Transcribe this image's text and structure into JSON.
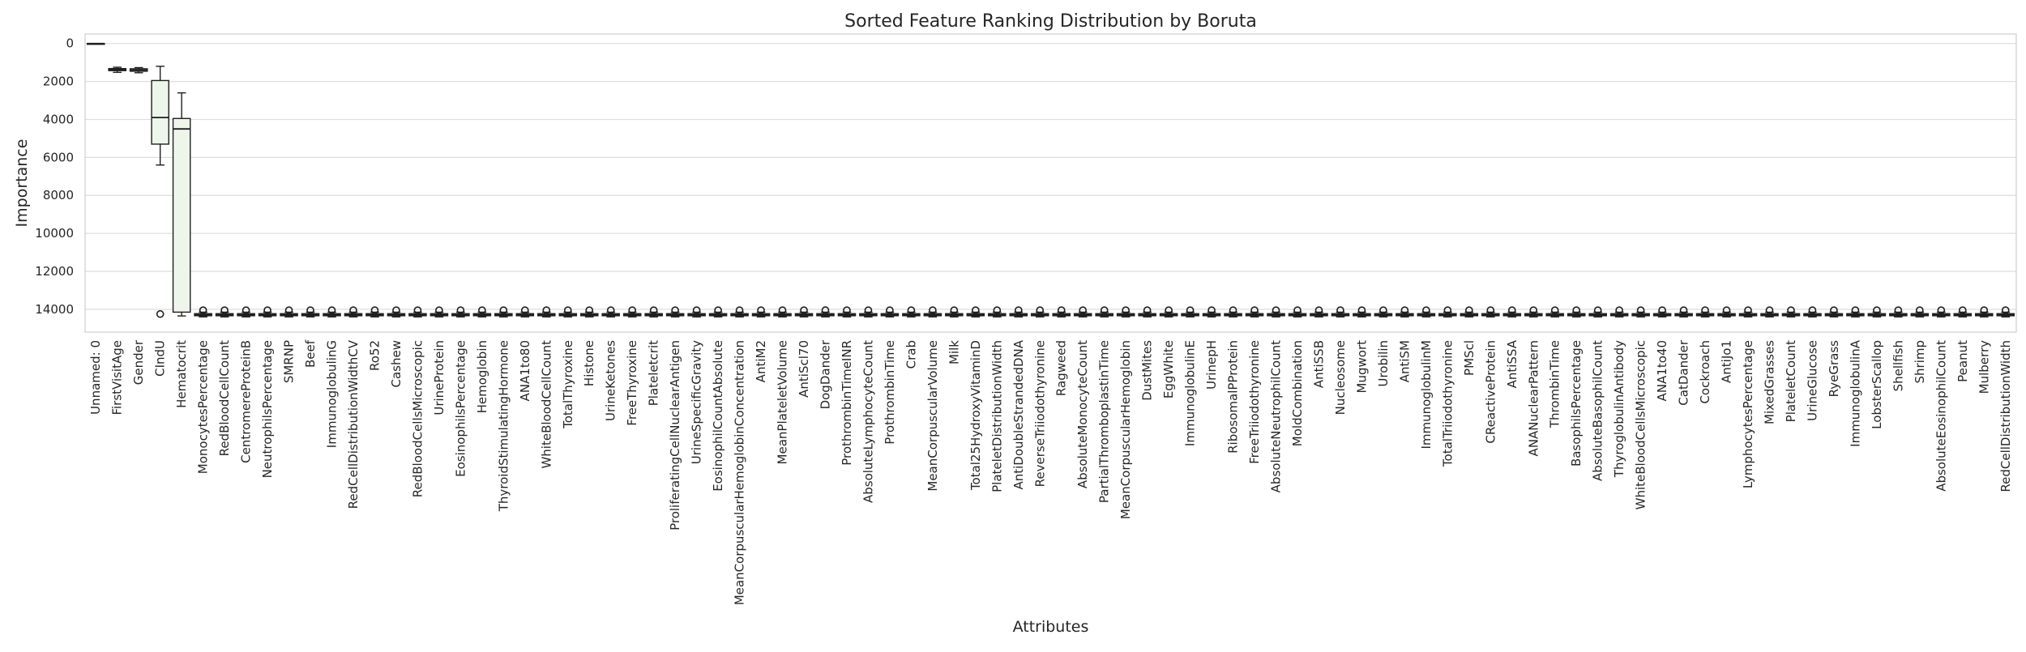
{
  "chart_data": {
    "type": "box",
    "title": "Sorted Feature Ranking Distribution by Boruta",
    "xlabel": "Attributes",
    "ylabel": "Importance",
    "y_axis_inverted": true,
    "ylim": [
      -500,
      15200
    ],
    "yticks": [
      0,
      2000,
      4000,
      6000,
      8000,
      10000,
      12000,
      14000
    ],
    "grid": "horizontal",
    "box_color": "#eef6ec",
    "edge_color": "#1f1f1f",
    "categories": [
      "Unnamed: 0",
      "FirstVisitAge",
      "Gender",
      "CIndU",
      "Hematocrit",
      "MonocytesPercentage",
      "RedBloodCellCount",
      "CentromereProteinB",
      "NeutrophilsPercentage",
      "SMRNP",
      "Beef",
      "ImmunoglobulinG",
      "RedCellDistributionWidthCV",
      "Ro52",
      "Cashew",
      "RedBloodCellsMicroscopic",
      "UrineProtein",
      "EosinophilsPercentage",
      "Hemoglobin",
      "ThyroidStimulatingHormone",
      "ANA1to80",
      "WhiteBloodCellCount",
      "TotalThyroxine",
      "Histone",
      "UrineKetones",
      "FreeThyroxine",
      "Plateletcrit",
      "ProliferatingCellNuclearAntigen",
      "UrineSpecificGravity",
      "EosinophilCountAbsolute",
      "MeanCorpuscularHemoglobinConcentration",
      "AntiM2",
      "MeanPlateletVolume",
      "AntiScl70",
      "DogDander",
      "ProthrombinTimeINR",
      "AbsoluteLymphocyteCount",
      "ProthrombinTime",
      "Crab",
      "MeanCorpuscularVolume",
      "Milk",
      "Total25HydroxyVitaminD",
      "PlateletDistributionWidth",
      "AntiDoubleStrandedDNA",
      "ReverseTriiodothyronine",
      "Ragweed",
      "AbsoluteMonocyteCount",
      "PartialThromboplastinTime",
      "MeanCorpuscularHemoglobin",
      "DustMites",
      "EggWhite",
      "ImmunoglobulinE",
      "UrinepH",
      "RibosomalPProtein",
      "FreeTriiodothyronine",
      "AbsoluteNeutrophilCount",
      "MoldCombination",
      "AntiSSB",
      "Nucleosome",
      "Mugwort",
      "Urobilin",
      "AntiSM",
      "ImmunoglobulinM",
      "TotalTriiodothyronine",
      "PMScl",
      "CReactiveProtein",
      "AntiSSA",
      "ANANuclearPattern",
      "ThrombinTime",
      "BasophilsPercentage",
      "AbsoluteBasophilCount",
      "ThyroglobulinAntibody",
      "WhiteBloodCellsMicroscopic",
      "ANA1to40",
      "CatDander",
      "Cockroach",
      "AntiJo1",
      "LymphocytesPercentage",
      "MixedGrasses",
      "PlateletCount",
      "UrineGlucose",
      "RyeGrass",
      "ImmunoglobulinA",
      "LobsterScallop",
      "Shellfish",
      "Shrimp",
      "AbsoluteEosinophilCount",
      "Peanut",
      "Mulberry",
      "RedCellDistributionWidth"
    ],
    "named_boxes": [
      {
        "whislo": 0,
        "q1": 0,
        "med": 0,
        "q3": 0,
        "whishi": 0,
        "fliers": []
      },
      {
        "whislo": 1250,
        "q1": 1320,
        "med": 1370,
        "q3": 1430,
        "whishi": 1520,
        "fliers": []
      },
      {
        "whislo": 1270,
        "q1": 1330,
        "med": 1400,
        "q3": 1460,
        "whishi": 1540,
        "fliers": []
      },
      {
        "whislo": 1200,
        "q1": 1950,
        "med": 3900,
        "q3": 5300,
        "whishi": 6400,
        "fliers": [
          14250
        ]
      },
      {
        "whislo": 2600,
        "q1": 3950,
        "med": 4500,
        "q3": 14150,
        "whishi": 14350,
        "fliers": []
      }
    ],
    "default_box": {
      "whislo": 14150,
      "q1": 14230,
      "med": 14290,
      "q3": 14340,
      "whishi": 14400,
      "fliers": [
        14050
      ]
    }
  }
}
